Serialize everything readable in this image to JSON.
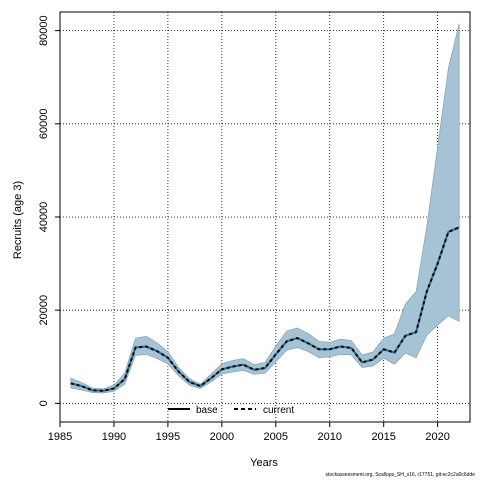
{
  "chart_data": {
    "type": "line",
    "title": "",
    "xlabel": "Years",
    "ylabel": "Recruits (age 3)",
    "xlim": [
      1985,
      2023
    ],
    "ylim": [
      -4000,
      84000
    ],
    "xticks": [
      1985,
      1990,
      1995,
      2000,
      2005,
      2010,
      2015,
      2020
    ],
    "yticks": [
      0,
      20000,
      40000,
      60000,
      80000
    ],
    "grid": true,
    "legend_position": "bottom-center",
    "colors": {
      "band": "#a5c3d4",
      "band_edge": "#7a9aab",
      "base": "#000000",
      "current": "#000000",
      "current_dash": "#2f6f8f"
    },
    "x": [
      1986,
      1987,
      1988,
      1989,
      1990,
      1991,
      1992,
      1993,
      1994,
      1995,
      1996,
      1997,
      1998,
      1999,
      2000,
      2001,
      2002,
      2003,
      2004,
      2005,
      2006,
      2007,
      2008,
      2009,
      2010,
      2011,
      2012,
      2013,
      2014,
      2015,
      2016,
      2017,
      2018,
      2019,
      2020,
      2021,
      2022
    ],
    "series": [
      {
        "name": "base",
        "style": "solid",
        "values": [
          4300,
          3700,
          2800,
          2700,
          3200,
          5200,
          12000,
          12200,
          11200,
          9800,
          6800,
          4600,
          3700,
          5400,
          7300,
          7900,
          8300,
          7200,
          7600,
          10500,
          13300,
          14000,
          12900,
          11600,
          11600,
          12200,
          11900,
          8800,
          9400,
          11600,
          10900,
          14500,
          15300,
          24000,
          30000,
          36800,
          37800
        ]
      },
      {
        "name": "current",
        "style": "dashed",
        "values": [
          4300,
          3700,
          2800,
          2700,
          3200,
          5200,
          12000,
          12200,
          11200,
          9800,
          6800,
          4600,
          3700,
          5400,
          7300,
          7900,
          8300,
          7200,
          7600,
          10500,
          13300,
          14000,
          12900,
          11600,
          11600,
          12200,
          11900,
          8800,
          9400,
          11600,
          10900,
          14500,
          15300,
          24000,
          30000,
          36800,
          37800
        ]
      }
    ],
    "band": {
      "upper": [
        5400,
        4500,
        3300,
        3100,
        3900,
        6500,
        14000,
        14400,
        13000,
        11100,
        7700,
        5300,
        4100,
        6300,
        8500,
        9200,
        9600,
        8300,
        8800,
        12300,
        15500,
        16200,
        15000,
        13300,
        13100,
        13800,
        13500,
        10400,
        11000,
        14000,
        14900,
        21300,
        24000,
        38000,
        55000,
        72000,
        81500
      ],
      "lower": [
        3300,
        2900,
        2300,
        2200,
        2600,
        4100,
        10300,
        10500,
        9600,
        8500,
        5900,
        3900,
        3200,
        4600,
        6300,
        6700,
        7100,
        6200,
        6500,
        8900,
        11400,
        12000,
        11100,
        9800,
        10000,
        10500,
        10400,
        7700,
        8000,
        9700,
        8400,
        10800,
        9800,
        14600,
        16800,
        18800,
        17600
      ]
    },
    "footnote": "stockassessment.org, Scallops_SH_s16, r17751, git:ec2c2a0c6dde"
  }
}
